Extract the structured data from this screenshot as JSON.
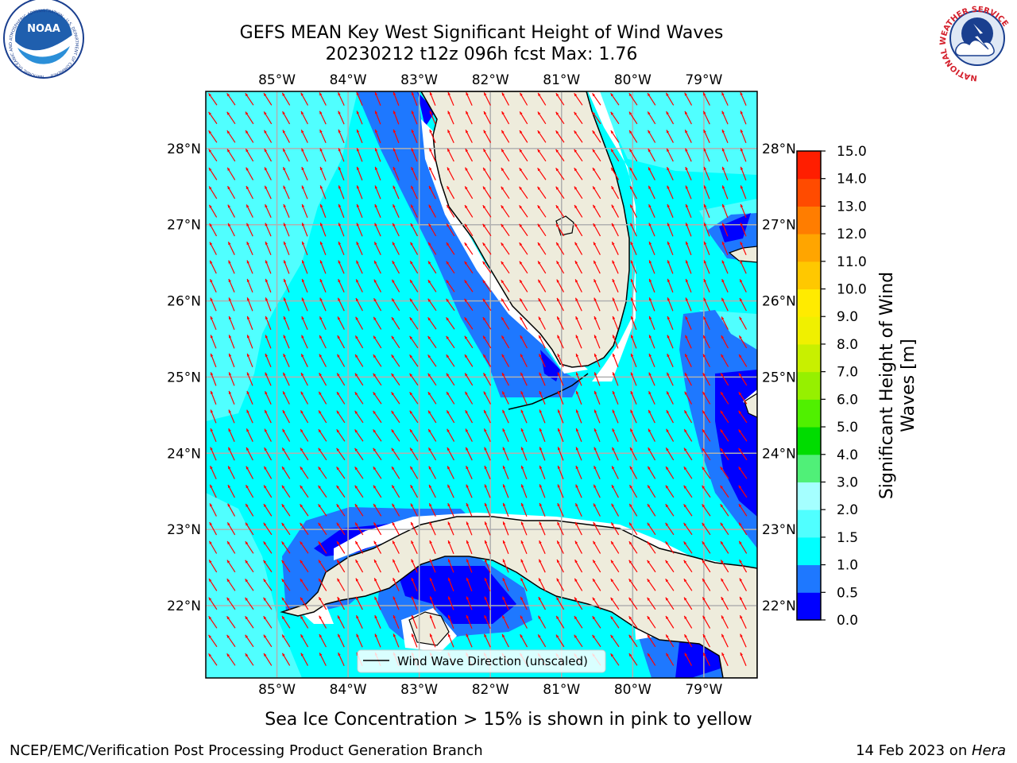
{
  "title": {
    "line1": "GEFS MEAN Key West Significant Height of Wind Waves",
    "line2": "20230212 t12z 096h fcst   Max: 1.76"
  },
  "logos": {
    "left": {
      "name": "noaa-logo",
      "text": "NOAA",
      "ring_text": "NATIONAL OCEANIC AND ATMOSPHERIC ADMINISTRATION · U.S. DEPARTMENT OF COMMERCE"
    },
    "right": {
      "name": "nws-logo",
      "ring_text": "NATIONAL WEATHER SERVICE"
    }
  },
  "map": {
    "lon_labels": [
      "85°W",
      "84°W",
      "83°W",
      "82°W",
      "81°W",
      "80°W",
      "79°W"
    ],
    "lat_labels": [
      "28°N",
      "27°N",
      "26°N",
      "25°N",
      "24°N",
      "23°N",
      "22°N"
    ],
    "lon_values": [
      -85,
      -84,
      -83,
      -82,
      -81,
      -80,
      -79
    ],
    "lat_values": [
      28,
      27,
      26,
      25,
      24,
      23,
      22
    ],
    "lon_range": [
      -86.0,
      -78.25
    ],
    "lat_range": [
      21.05,
      28.75
    ],
    "grid": true,
    "land_color": "#eeecdc",
    "coast_color": "#000000",
    "arrow_color": "#ff0000",
    "legend_label": "Wind Wave Direction (unscaled)"
  },
  "colorbar": {
    "label": "Significant Height of Wind Waves [m]",
    "label_line1": "Significant Height of Wind",
    "label_line2": "Waves [m]",
    "ticks": [
      "0.0",
      "0.5",
      "1.0",
      "1.5",
      "2.0",
      "3.0",
      "4.0",
      "5.0",
      "6.0",
      "7.0",
      "8.0",
      "9.0",
      "10.0",
      "11.0",
      "12.0",
      "13.0",
      "14.0",
      "15.0"
    ],
    "colors": [
      "#0000ff",
      "#1e78ff",
      "#00ffff",
      "#50ffff",
      "#a5ffff",
      "#50f078",
      "#00dc00",
      "#50f000",
      "#96f000",
      "#c8f000",
      "#f0f000",
      "#ffeb00",
      "#ffc800",
      "#ffa500",
      "#ff7d00",
      "#ff4b00",
      "#ff1e00"
    ]
  },
  "footer": {
    "note": "Sea Ice Concentration > 15% is shown in pink to yellow",
    "credit": "NCEP/EMC/Verification Post Processing Product Generation Branch",
    "date": "14 Feb 2023 on ",
    "host": "Hera"
  }
}
